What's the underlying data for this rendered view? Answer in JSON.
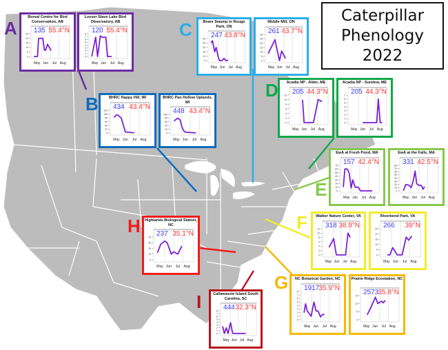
{
  "title": {
    "line1": "Caterpillar",
    "line2": "Phenology",
    "line3": "2022"
  },
  "colors": {
    "A": "#6a2da0",
    "B": "#0f6bbd",
    "C": "#2aaee8",
    "D": "#12a84a",
    "E": "#86c94a",
    "F": "#f2ec2a",
    "G": "#f6b800",
    "H": "#f21b1b",
    "I": "#b8131c",
    "count": "#3b3bff",
    "latitude": "#ff3333",
    "line": "#7a1fd6",
    "map_land": "#bcbcbc",
    "map_border": "#ffffff"
  },
  "groups": [
    {
      "id": "A",
      "label": "A"
    },
    {
      "id": "B",
      "label": "B"
    },
    {
      "id": "C",
      "label": "C"
    },
    {
      "id": "D",
      "label": "D"
    },
    {
      "id": "E",
      "label": "E"
    },
    {
      "id": "F",
      "label": "F"
    },
    {
      "id": "G",
      "label": "G"
    },
    {
      "id": "H",
      "label": "H"
    },
    {
      "id": "I",
      "label": "I"
    }
  ],
  "month_labels": [
    "May",
    "Jun",
    "Jul",
    "Aug"
  ],
  "chart_data": [
    {
      "type": "line",
      "group": "A",
      "title": "Boreal Centre for Bird Conservation, AB",
      "count": "135",
      "latitude": "55.4°N",
      "ylim": [
        0,
        25
      ],
      "yticks": [
        0,
        5,
        10,
        15,
        20,
        25
      ],
      "x": [
        0.05,
        0.28,
        0.35,
        0.62,
        0.72,
        0.8,
        0.92,
        1.15
      ],
      "values": [
        0,
        0,
        20,
        20,
        7,
        7,
        13.5,
        6.5
      ]
    },
    {
      "type": "line",
      "group": "A",
      "title": "Lesser Slave Lake Bird Observatory, AB",
      "count": "120",
      "latitude": "55.4°N",
      "ylim": [
        0,
        8
      ],
      "yticks": [
        0,
        1,
        2,
        3,
        4,
        5,
        6,
        7,
        8
      ],
      "x": [
        0.05,
        0.3,
        0.42,
        0.6,
        0.72,
        0.95,
        1.05,
        1.32
      ],
      "values": [
        0,
        6.8,
        0,
        7.2,
        6.8,
        6.8,
        0,
        0
      ]
    },
    {
      "type": "line",
      "group": "B",
      "title": "BHRC Happy Hill, WI",
      "count": "434",
      "latitude": "43.4°N",
      "ylim": [
        0,
        120
      ],
      "yticks": [
        0,
        20,
        40,
        60,
        80,
        100,
        120
      ],
      "x": [
        0.1,
        0.25,
        0.35,
        0.55,
        0.7,
        0.8,
        1.0,
        1.2,
        1.35
      ],
      "values": [
        82,
        95,
        94,
        78,
        35,
        5,
        4,
        2,
        1
      ]
    },
    {
      "type": "line",
      "group": "B",
      "title": "BHRC Pan Hollow Uplands, WI",
      "count": "448",
      "latitude": "43.4°N",
      "ylim": [
        0,
        100
      ],
      "yticks": [
        0,
        20,
        40,
        60,
        80,
        100
      ],
      "x": [
        0.1,
        0.35,
        0.48,
        0.62,
        0.75,
        0.95,
        1.2,
        1.45
      ],
      "values": [
        65,
        80,
        70,
        25,
        6,
        3,
        2,
        0
      ]
    },
    {
      "type": "line",
      "group": "C",
      "title": "Beare Swamp in Rouge Park, ON",
      "count": "247",
      "latitude": "43.8°N",
      "ylim": [
        0,
        50
      ],
      "yticks": [
        0,
        10,
        20,
        30,
        40,
        50
      ],
      "x": [
        0.05,
        0.15,
        0.3,
        0.4,
        0.52,
        0.62,
        0.78,
        0.92,
        1.05,
        1.2
      ],
      "values": [
        40,
        45,
        20,
        30,
        10,
        0,
        0,
        5,
        0,
        1
      ]
    },
    {
      "type": "line",
      "group": "C",
      "title": "Middle Mill, ON",
      "count": "261",
      "latitude": "43.7°N",
      "ylim": [
        0,
        30
      ],
      "yticks": [
        0,
        5,
        10,
        15,
        20,
        25,
        30
      ],
      "x": [
        0.05,
        0.5,
        0.8,
        0.95,
        1.2
      ],
      "values": [
        8,
        24,
        0,
        11,
        2.5
      ]
    },
    {
      "type": "line",
      "group": "D",
      "title": "Acadia NP - Alder, ME",
      "count": "205",
      "latitude": "44.3°N",
      "ylim": [
        0,
        12
      ],
      "yticks": [
        0,
        2,
        4,
        6,
        8,
        10,
        12
      ],
      "x": [
        0.7,
        0.8,
        1.0,
        1.2,
        1.4,
        1.7,
        1.95
      ],
      "values": [
        10,
        0,
        0,
        0,
        0,
        10,
        9.2
      ]
    },
    {
      "type": "line",
      "group": "D",
      "title": "Acadia NP - Sundew, ME",
      "count": "205",
      "latitude": "44.3°N",
      "ylim": [
        0,
        7
      ],
      "yticks": [
        0,
        1,
        2,
        3,
        4,
        5,
        6,
        7
      ],
      "x": [
        0.8,
        0.95,
        1.1,
        1.25,
        1.4,
        1.55,
        1.7,
        1.8,
        1.92,
        2.05
      ],
      "values": [
        0,
        0,
        0,
        0,
        0,
        0,
        0,
        6,
        0,
        0
      ]
    },
    {
      "type": "line",
      "group": "E",
      "title": "EwA at Fresh Pond, MA",
      "count": "157",
      "latitude": "42.4°N",
      "ylim": [
        0,
        70
      ],
      "yticks": [
        0,
        10,
        20,
        30,
        40,
        50,
        60,
        70
      ],
      "x": [
        0.05,
        0.15,
        0.3,
        0.42,
        0.55,
        0.65,
        0.8,
        1.0,
        1.15,
        1.3,
        1.5,
        1.7,
        1.9
      ],
      "values": [
        10,
        60,
        60,
        50,
        8,
        30,
        10,
        10,
        0,
        0,
        0,
        0,
        0
      ]
    },
    {
      "type": "line",
      "group": "E",
      "title": "EwA at the Falls, MA",
      "count": "331",
      "latitude": "42.5°N",
      "ylim": [
        0,
        80
      ],
      "yticks": [
        0,
        10,
        20,
        30,
        40,
        50,
        60,
        70,
        80
      ],
      "x": [
        0.1,
        0.25,
        0.45,
        0.6,
        0.72,
        0.85,
        0.95,
        1.1,
        1.25,
        1.35,
        1.45
      ],
      "values": [
        0,
        20,
        18,
        10,
        30,
        62,
        22,
        17,
        17,
        5,
        13
      ]
    },
    {
      "type": "line",
      "group": "F",
      "title": "Walker Nature Center, VA",
      "count": "318",
      "latitude": "38.9°N",
      "ylim": [
        0,
        12
      ],
      "yticks": [
        0,
        2,
        4,
        6,
        8,
        10,
        12
      ],
      "x": [
        0.3,
        0.6,
        0.78,
        1.0,
        1.2,
        1.4,
        1.55,
        1.7
      ],
      "values": [
        3.5,
        7.5,
        0,
        0,
        0,
        0,
        10,
        8
      ]
    },
    {
      "type": "line",
      "group": "F",
      "title": "Riverbend Park, VA",
      "count": "266",
      "latitude": "39°N",
      "ylim": [
        0,
        25
      ],
      "yticks": [
        0,
        5,
        10,
        15,
        20,
        25
      ],
      "x": [
        0.3,
        0.45,
        0.62,
        0.9,
        1.05,
        1.2,
        1.45,
        1.6,
        1.8
      ],
      "values": [
        0,
        0,
        7,
        0,
        0,
        0,
        17,
        14,
        18
      ]
    },
    {
      "type": "line",
      "group": "G",
      "title": "NC Botanical Garden, NC",
      "count": "1917",
      "latitude": "35.9°N",
      "ylim": [
        0,
        8
      ],
      "yticks": [
        0,
        1,
        2,
        3,
        4,
        5,
        6,
        7,
        8
      ],
      "x": [
        0.05,
        0.15,
        0.25,
        0.5,
        0.68,
        0.82,
        0.95,
        1.1,
        1.25,
        1.35
      ],
      "values": [
        2,
        4.5,
        2.5,
        1,
        5,
        2.5,
        2.4,
        0.8,
        1.5,
        1.5
      ]
    },
    {
      "type": "line",
      "group": "G",
      "title": "Prairie Ridge Ecostation, NC",
      "count": "2573",
      "latitude": "35.8°N",
      "ylim": [
        0,
        15
      ],
      "yticks": [
        0,
        5,
        10,
        15
      ],
      "x": [
        0.3,
        0.6,
        0.82,
        0.98,
        1.1,
        1.22,
        1.32,
        1.45
      ],
      "values": [
        3,
        9,
        14,
        10,
        11,
        11.5,
        10.5,
        12
      ]
    },
    {
      "type": "line",
      "group": "H",
      "title": "Highlands Biological Station, NC",
      "count": "237",
      "latitude": "35.1°N",
      "ylim": [
        0,
        40
      ],
      "yticks": [
        0,
        10,
        20,
        30,
        40
      ],
      "x": [
        0.1,
        0.3,
        0.55,
        0.7,
        0.95,
        1.1,
        1.35,
        1.6
      ],
      "values": [
        12,
        27,
        33,
        30,
        10,
        14,
        10,
        24
      ]
    },
    {
      "type": "line",
      "group": "I",
      "title": "Callawassie Island South Carolina, SC",
      "count": "444",
      "latitude": "32.3°N",
      "ylim": [
        0,
        8
      ],
      "yticks": [
        0,
        1,
        2,
        3,
        4,
        5,
        6,
        7,
        8
      ],
      "x": [
        0.0,
        0.12,
        0.25,
        0.38,
        0.55,
        0.7,
        0.85,
        1.0,
        1.15,
        1.3,
        1.45,
        1.6
      ],
      "values": [
        2.5,
        0,
        2,
        0,
        3.8,
        0,
        0,
        0,
        0,
        0,
        0,
        0
      ]
    }
  ]
}
